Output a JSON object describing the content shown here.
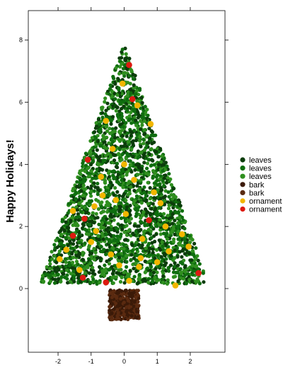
{
  "chart_data": {
    "type": "scatter",
    "title": "",
    "xlabel": "",
    "ylabel": "Happy Holidays!",
    "xlim": [
      -2.9,
      3.05
    ],
    "ylim": [
      -2.05,
      8.95
    ],
    "x_ticks": [
      -2,
      -1,
      0,
      1,
      2
    ],
    "y_ticks": [
      0,
      2,
      4,
      6,
      8
    ],
    "grid": false,
    "legend_position": "right",
    "legend": [
      {
        "label": "leaves",
        "color": "#0b3d0b"
      },
      {
        "label": "leaves",
        "color": "#0f6e0f"
      },
      {
        "label": "leaves",
        "color": "#2f8f1f"
      },
      {
        "label": "bark",
        "color": "#3b1a08"
      },
      {
        "label": "bark",
        "color": "#5a2a10"
      },
      {
        "label": "ornament",
        "color": "#f2b600"
      },
      {
        "label": "ornament",
        "color": "#dd1a10"
      }
    ],
    "leaves_region": {
      "apex": [
        0,
        7.9
      ],
      "base_left": [
        -2.55,
        0.15
      ],
      "base_right": [
        2.55,
        0.15
      ]
    },
    "bark_region": {
      "x": [
        -0.45,
        0.45
      ],
      "y": [
        -1.0,
        -0.05
      ]
    },
    "ornaments_yellow": [
      [
        -0.05,
        6.6
      ],
      [
        0.4,
        5.9
      ],
      [
        0.8,
        5.3
      ],
      [
        -0.55,
        5.4
      ],
      [
        -0.35,
        4.5
      ],
      [
        0.0,
        4.0
      ],
      [
        -0.7,
        3.6
      ],
      [
        0.3,
        3.5
      ],
      [
        0.9,
        3.1
      ],
      [
        -0.65,
        3.0
      ],
      [
        -0.25,
        2.85
      ],
      [
        1.1,
        2.75
      ],
      [
        -1.55,
        2.5
      ],
      [
        -0.9,
        2.65
      ],
      [
        0.05,
        2.4
      ],
      [
        1.25,
        2.0
      ],
      [
        1.75,
        1.75
      ],
      [
        -0.85,
        1.85
      ],
      [
        0.55,
        1.6
      ],
      [
        -1.0,
        1.5
      ],
      [
        1.35,
        1.2
      ],
      [
        1.95,
        1.35
      ],
      [
        -1.75,
        1.25
      ],
      [
        -0.4,
        1.1
      ],
      [
        0.5,
        0.98
      ],
      [
        -1.95,
        0.95
      ],
      [
        -0.15,
        0.75
      ],
      [
        0.45,
        0.7
      ],
      [
        1.0,
        0.85
      ],
      [
        -1.35,
        0.6
      ],
      [
        0.15,
        0.25
      ],
      [
        1.55,
        0.1
      ]
    ],
    "ornaments_red": [
      [
        0.15,
        7.2
      ],
      [
        0.25,
        6.1
      ],
      [
        -1.1,
        4.15
      ],
      [
        -1.2,
        2.25
      ],
      [
        0.75,
        2.2
      ],
      [
        -1.55,
        1.7
      ],
      [
        -1.25,
        0.35
      ],
      [
        -0.55,
        0.2
      ],
      [
        2.25,
        0.5
      ]
    ]
  }
}
